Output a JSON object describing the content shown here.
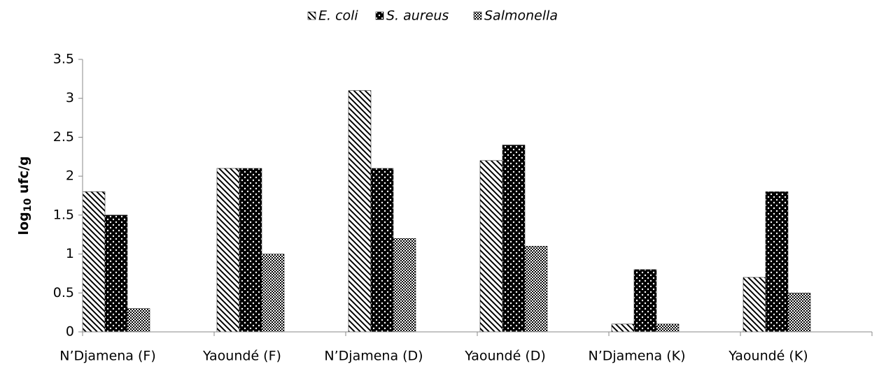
{
  "chart_data": {
    "type": "bar",
    "y_label": {
      "base": "log",
      "subscript": "10",
      "unit": "ufc/g"
    },
    "categories": [
      "N’Djamena (F)",
      "Yaoundé (F)",
      "N’Djamena (D)",
      "Yaoundé (D)",
      "N’Djamena (K)",
      "Yaoundé (K)"
    ],
    "series": [
      {
        "name": "E. coli",
        "color": "#000000",
        "pattern": "diagonal",
        "values": [
          1.8,
          2.1,
          3.1,
          2.2,
          0.1,
          0.7
        ]
      },
      {
        "name": "S. aureus",
        "color": "#000000",
        "pattern": "dots",
        "values": [
          1.5,
          2.1,
          2.1,
          2.4,
          0.8,
          1.8
        ]
      },
      {
        "name": "Salmonella",
        "color": "#000000",
        "pattern": "checker",
        "values": [
          0.3,
          1.0,
          1.2,
          1.1,
          0.1,
          0.5
        ]
      }
    ],
    "ylim": [
      0,
      3.5
    ],
    "yticks": [
      0,
      0.5,
      1,
      1.5,
      2,
      2.5,
      3,
      3.5
    ],
    "grid": false,
    "legend": "top"
  }
}
